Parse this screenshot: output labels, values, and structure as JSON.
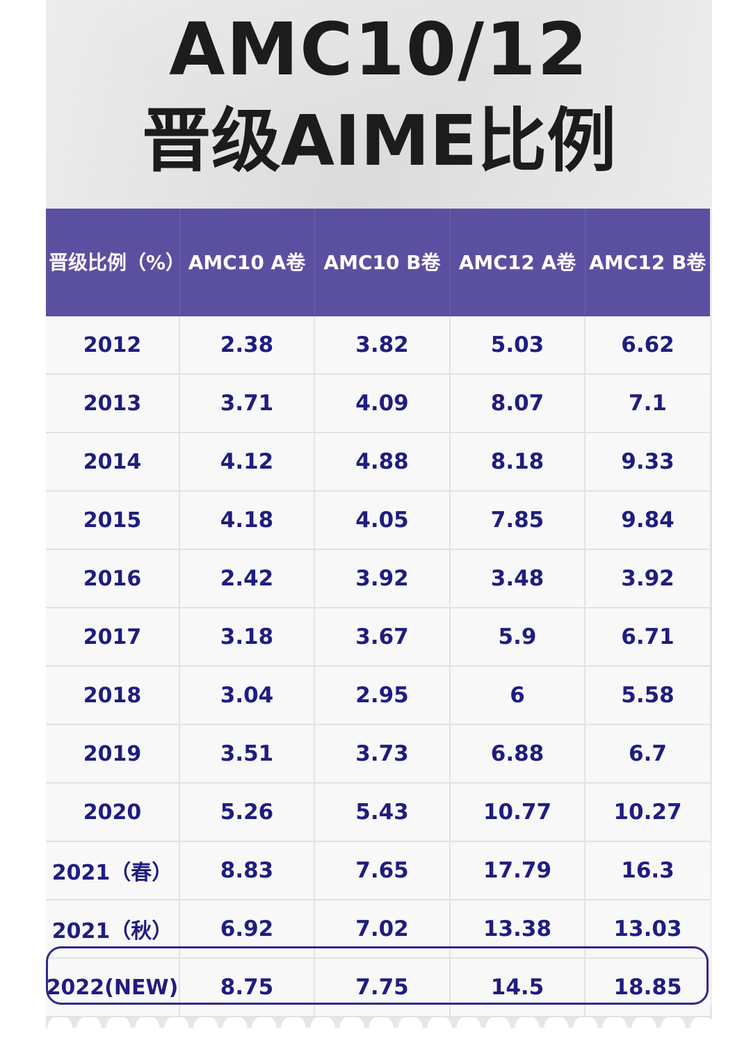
{
  "title": {
    "line1": "AMC10/12",
    "line2": "晋级AIME比例"
  },
  "table": {
    "headers": [
      "晋级比例（%）",
      "AMC10 A卷",
      "AMC10 B卷",
      "AMC12 A卷",
      "AMC12 B卷"
    ],
    "rows": [
      [
        "2012",
        "2.38",
        "3.82",
        "5.03",
        "6.62"
      ],
      [
        "2013",
        "3.71",
        "4.09",
        "8.07",
        "7.1"
      ],
      [
        "2014",
        "4.12",
        "4.88",
        "8.18",
        "9.33"
      ],
      [
        "2015",
        "4.18",
        "4.05",
        "7.85",
        "9.84"
      ],
      [
        "2016",
        "2.42",
        "3.92",
        "3.48",
        "3.92"
      ],
      [
        "2017",
        "3.18",
        "3.67",
        "5.9",
        "6.71"
      ],
      [
        "2018",
        "3.04",
        "2.95",
        "6",
        "5.58"
      ],
      [
        "2019",
        "3.51",
        "3.73",
        "6.88",
        "6.7"
      ],
      [
        "2020",
        "5.26",
        "5.43",
        "10.77",
        "10.27"
      ],
      [
        "2021（春）",
        "8.83",
        "7.65",
        "17.79",
        "16.3"
      ],
      [
        "2021（秋）",
        "6.92",
        "7.02",
        "13.38",
        "13.03"
      ],
      [
        "2022(NEW)",
        "8.75",
        "7.75",
        "14.5",
        "18.85"
      ]
    ],
    "highlighted_row": "2022(NEW)"
  },
  "colors": {
    "header_bg": "#5b50a0",
    "header_text": "#ffffff",
    "cell_text": "#1f1d7f",
    "title_text": "#1c1c1c",
    "highlight_border": "#2d2a8a"
  }
}
